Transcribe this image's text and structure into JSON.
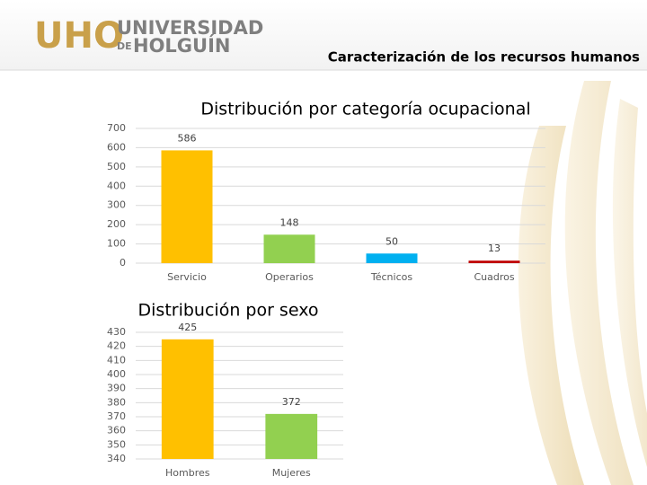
{
  "header": {
    "logo": "UHO",
    "university_line1": "UNIVERSIDAD",
    "university_prefix": "DE",
    "university_line2": "HOLGUÍN",
    "subtitle": "Caracterización de los recursos humanos"
  },
  "chart_data": [
    {
      "type": "bar",
      "title": "Distribución por categoría ocupacional",
      "categories": [
        "Servicio",
        "Operarios",
        "Técnicos",
        "Cuadros"
      ],
      "values": [
        586,
        148,
        50,
        13
      ],
      "colors": [
        "#FFC000",
        "#92D050",
        "#00B0F0",
        "#C00000"
      ],
      "ylim": [
        0,
        700
      ],
      "yticks": [
        0,
        100,
        200,
        300,
        400,
        500,
        600,
        700
      ],
      "grid": true
    },
    {
      "type": "bar",
      "title": "Distribución por sexo",
      "categories": [
        "Hombres",
        "Mujeres"
      ],
      "values": [
        425,
        372
      ],
      "colors": [
        "#FFC000",
        "#92D050"
      ],
      "ylim": [
        340,
        430
      ],
      "yticks": [
        340,
        350,
        360,
        370,
        380,
        390,
        400,
        410,
        420,
        430
      ],
      "grid": true
    }
  ]
}
